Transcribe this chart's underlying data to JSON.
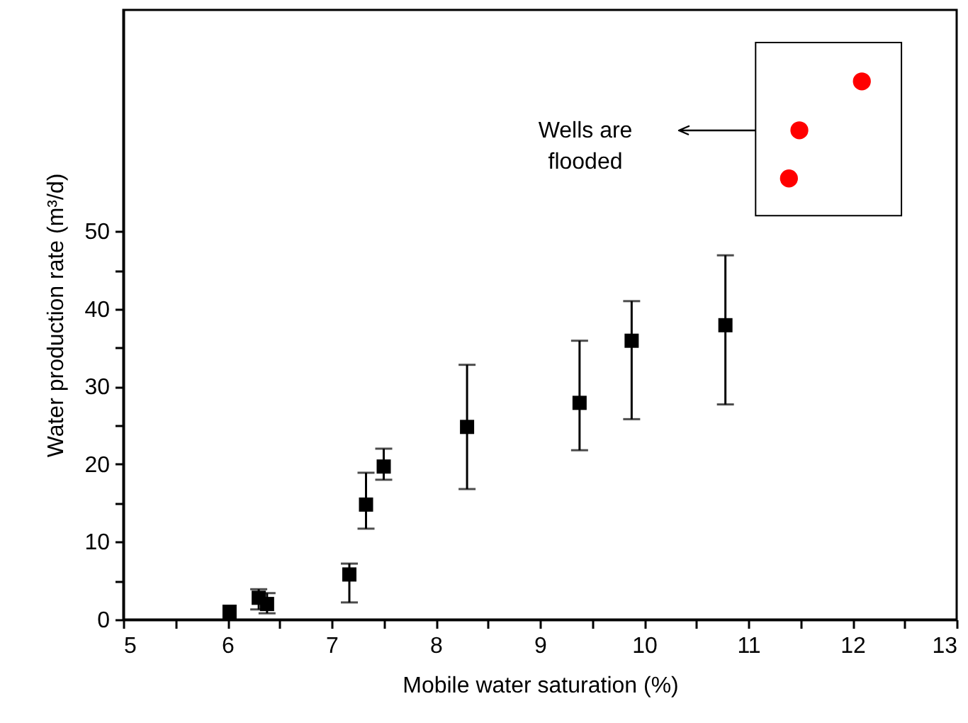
{
  "chart_data": {
    "type": "scatter",
    "xlabel": "Mobile water saturation (%)",
    "ylabel": "Water production rate (m³/d)",
    "xlim": [
      5,
      13
    ],
    "ylim": [
      0,
      78.5
    ],
    "xticks": [
      5,
      {
        "value": 5.5,
        "label": null
      },
      6,
      {
        "value": 6.5,
        "label": null
      },
      7,
      {
        "value": 7.5,
        "label": null
      },
      8,
      {
        "value": 8.5,
        "label": null
      },
      9,
      {
        "value": 9.5,
        "label": null
      },
      10,
      {
        "value": 10.5,
        "label": null
      },
      11,
      {
        "value": 11.5,
        "label": null
      },
      12,
      {
        "value": 12.5,
        "label": null
      },
      13
    ],
    "yticks": [
      0,
      {
        "value": 5,
        "label": null
      },
      10,
      {
        "value": 15,
        "label": null
      },
      20,
      {
        "value": 25,
        "label": null
      },
      30,
      {
        "value": 35,
        "label": null
      },
      40,
      {
        "value": 45,
        "label": null
      },
      50
    ],
    "grid": false,
    "series": [
      {
        "color": "#000000",
        "marker": "square",
        "x": [
          6.02,
          6.3,
          6.38,
          7.17,
          7.33,
          7.5,
          8.3,
          9.38,
          9.88,
          10.78
        ],
        "values": [
          1,
          2.8,
          2.0,
          5.8,
          14.8,
          19.7,
          24.8,
          27.9,
          35.9,
          37.9
        ],
        "errors": [
          null,
          [
            1.3,
            3.9
          ],
          [
            0.8,
            3.4
          ],
          [
            2.2,
            7.2
          ],
          [
            11.7,
            18.9
          ],
          [
            18,
            22
          ],
          [
            16.8,
            32.8
          ],
          [
            21.8,
            35.9
          ],
          [
            25.8,
            41
          ],
          [
            27.7,
            46.9
          ]
        ]
      },
      {
        "color": "#ff0000",
        "marker": "circle",
        "x": [
          11.39,
          11.49,
          12.09
        ],
        "values": [
          56.8,
          63,
          69.3
        ]
      }
    ],
    "annotations": [
      "Wells are\nflooded"
    ]
  }
}
